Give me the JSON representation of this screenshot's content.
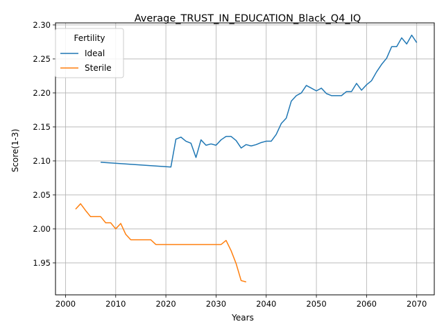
{
  "chart_data": {
    "type": "line",
    "title": "Average_TRUST_IN_EDUCATION_Black_Q4_IQ",
    "xlabel": "Years",
    "ylabel": "Score(1-3)",
    "xlim": [
      1998,
      2073.5
    ],
    "ylim": [
      1.903,
      2.303
    ],
    "xticks": [
      2000,
      2010,
      2020,
      2030,
      2040,
      2050,
      2060,
      2070
    ],
    "yticks": [
      1.95,
      2.0,
      2.05,
      2.1,
      2.15,
      2.2,
      2.25,
      2.3
    ],
    "xtick_labels": [
      "2000",
      "2010",
      "2020",
      "2030",
      "2040",
      "2050",
      "2060",
      "2070"
    ],
    "ytick_labels": [
      "1.95",
      "2.00",
      "2.05",
      "2.10",
      "2.15",
      "2.20",
      "2.25",
      "2.30"
    ],
    "grid": true,
    "legend": {
      "title": "Fertility",
      "placement": "top-left"
    },
    "series": [
      {
        "name": "Ideal",
        "color": "#1f77b4",
        "x": [
          2007,
          2021,
          2022,
          2023,
          2024,
          2025,
          2026,
          2027,
          2028,
          2029,
          2030,
          2031,
          2032,
          2033,
          2034,
          2035,
          2036,
          2037,
          2038,
          2039,
          2040,
          2041,
          2042,
          2043,
          2044,
          2045,
          2046,
          2047,
          2048,
          2049,
          2050,
          2051,
          2052,
          2053,
          2054,
          2055,
          2056,
          2057,
          2058,
          2059,
          2060,
          2061,
          2062,
          2063,
          2064,
          2065,
          2066,
          2067,
          2068,
          2069,
          2070
        ],
        "y": [
          2.098,
          2.091,
          2.132,
          2.135,
          2.129,
          2.126,
          2.105,
          2.131,
          2.123,
          2.125,
          2.123,
          2.131,
          2.136,
          2.136,
          2.13,
          2.119,
          2.124,
          2.122,
          2.124,
          2.127,
          2.129,
          2.129,
          2.139,
          2.155,
          2.163,
          2.188,
          2.196,
          2.2,
          2.211,
          2.207,
          2.203,
          2.207,
          2.199,
          2.196,
          2.196,
          2.196,
          2.202,
          2.202,
          2.214,
          2.204,
          2.212,
          2.218,
          2.231,
          2.242,
          2.251,
          2.268,
          2.268,
          2.281,
          2.272,
          2.285,
          2.274
        ]
      },
      {
        "name": "Sterile",
        "color": "#ff7f0e",
        "x": [
          2002,
          2003,
          2004,
          2005,
          2006,
          2007,
          2008,
          2009,
          2010,
          2011,
          2012,
          2013,
          2014,
          2015,
          2016,
          2017,
          2018,
          2019,
          2020,
          2021,
          2022,
          2023,
          2024,
          2025,
          2026,
          2027,
          2028,
          2029,
          2030,
          2031,
          2032,
          2033,
          2034,
          2035,
          2036
        ],
        "y": [
          2.029,
          2.037,
          2.027,
          2.018,
          2.018,
          2.018,
          2.009,
          2.009,
          2.0,
          2.008,
          1.992,
          1.984,
          1.984,
          1.984,
          1.984,
          1.984,
          1.977,
          1.977,
          1.977,
          1.977,
          1.977,
          1.977,
          1.977,
          1.977,
          1.977,
          1.977,
          1.977,
          1.977,
          1.977,
          1.977,
          1.983,
          1.968,
          1.949,
          1.924,
          1.922
        ]
      }
    ]
  }
}
